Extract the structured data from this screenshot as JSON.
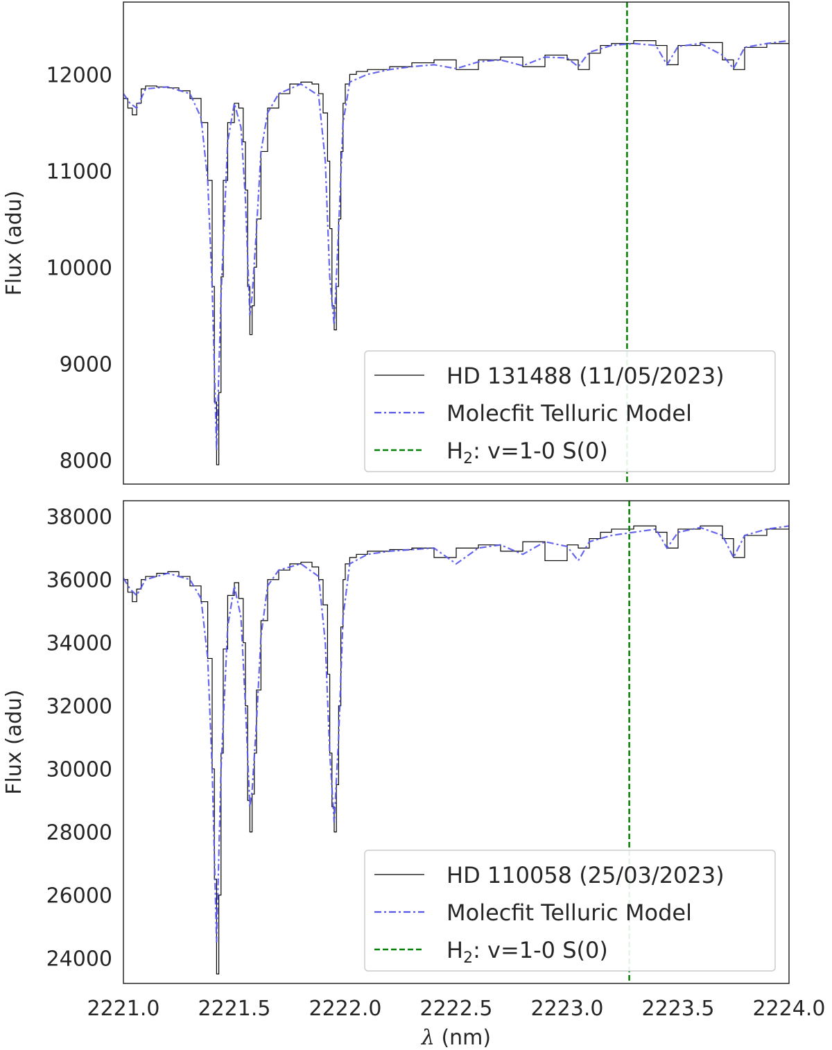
{
  "chart_data": [
    {
      "type": "line",
      "title": "",
      "xlabel": "",
      "ylabel": "Flux (adu)",
      "xlim": [
        2221.0,
        2224.0
      ],
      "ylim": [
        7750,
        12750
      ],
      "yticks": [
        8000,
        9000,
        10000,
        11000,
        12000
      ],
      "xticks": [],
      "grid": false,
      "legend_position": "lower-right",
      "vline": {
        "x": 2223.27,
        "color": "#008000",
        "style": "dashed",
        "label": "H<sub>2</sub>: v=1-0 S(0)"
      },
      "series": [
        {
          "name": "HD 131488 (11/05/2023)",
          "color": "#000000",
          "style": "step",
          "x": [
            2221.0,
            2221.02,
            2221.04,
            2221.06,
            2221.08,
            2221.1,
            2221.15,
            2221.2,
            2221.25,
            2221.3,
            2221.35,
            2221.38,
            2221.4,
            2221.41,
            2221.42,
            2221.43,
            2221.44,
            2221.45,
            2221.47,
            2221.5,
            2221.52,
            2221.54,
            2221.55,
            2221.56,
            2221.57,
            2221.58,
            2221.59,
            2221.6,
            2221.62,
            2221.65,
            2221.7,
            2221.75,
            2221.8,
            2221.85,
            2221.88,
            2221.9,
            2221.92,
            2221.93,
            2221.94,
            2221.95,
            2221.96,
            2221.97,
            2221.98,
            2221.99,
            2222.0,
            2222.02,
            2222.05,
            2222.1,
            2222.2,
            2222.3,
            2222.4,
            2222.5,
            2222.6,
            2222.7,
            2222.8,
            2222.9,
            2223.0,
            2223.05,
            2223.1,
            2223.15,
            2223.2,
            2223.3,
            2223.4,
            2223.45,
            2223.5,
            2223.6,
            2223.7,
            2223.75,
            2223.8,
            2223.9,
            2224.0
          ],
          "values": [
            11750,
            11650,
            11580,
            11700,
            11850,
            11880,
            11870,
            11860,
            11830,
            11750,
            11500,
            10900,
            9800,
            8600,
            7950,
            8700,
            9900,
            10900,
            11500,
            11700,
            11650,
            11300,
            10800,
            9800,
            9300,
            9600,
            10000,
            10500,
            11200,
            11650,
            11800,
            11900,
            11920,
            11900,
            11800,
            11600,
            11100,
            10400,
            9600,
            9350,
            9800,
            10500,
            11200,
            11700,
            11900,
            12000,
            12030,
            12050,
            12080,
            12120,
            12150,
            12050,
            12150,
            12180,
            12080,
            12200,
            12150,
            12050,
            12220,
            12300,
            12320,
            12350,
            12300,
            12100,
            12300,
            12330,
            12150,
            12050,
            12280,
            12320,
            12350
          ]
        },
        {
          "name": "Molecfit Telluric Model",
          "color": "#5555ee",
          "style": "dashdot",
          "x": [
            2221.0,
            2221.03,
            2221.06,
            2221.1,
            2221.2,
            2221.3,
            2221.35,
            2221.38,
            2221.4,
            2221.42,
            2221.44,
            2221.47,
            2221.5,
            2221.53,
            2221.55,
            2221.57,
            2221.58,
            2221.6,
            2221.62,
            2221.65,
            2221.7,
            2221.8,
            2221.88,
            2221.91,
            2221.93,
            2221.95,
            2221.97,
            2221.99,
            2222.02,
            2222.1,
            2222.2,
            2222.3,
            2222.4,
            2222.5,
            2222.6,
            2222.7,
            2222.8,
            2222.9,
            2223.0,
            2223.05,
            2223.1,
            2223.2,
            2223.3,
            2223.4,
            2223.45,
            2223.5,
            2223.6,
            2223.7,
            2223.75,
            2223.8,
            2223.9,
            2224.0
          ],
          "values": [
            11800,
            11700,
            11650,
            11850,
            11870,
            11800,
            11550,
            10900,
            9800,
            8100,
            9700,
            11300,
            11700,
            11450,
            10700,
            9500,
            9700,
            10400,
            11200,
            11600,
            11800,
            11900,
            11780,
            11100,
            9900,
            9400,
            10400,
            11500,
            11920,
            12000,
            12050,
            12080,
            12100,
            12060,
            12130,
            12150,
            12090,
            12180,
            12170,
            12080,
            12230,
            12300,
            12320,
            12300,
            12100,
            12290,
            12320,
            12200,
            12060,
            12280,
            12320,
            12350
          ]
        }
      ]
    },
    {
      "type": "line",
      "title": "",
      "xlabel": "λ (nm)",
      "ylabel": "Flux (adu)",
      "xlim": [
        2221.0,
        2224.0
      ],
      "ylim": [
        23200,
        38500
      ],
      "yticks": [
        24000,
        26000,
        28000,
        30000,
        32000,
        34000,
        36000,
        38000
      ],
      "xticks": [
        "2221.0",
        "2221.5",
        "2222.0",
        "2222.5",
        "2223.0",
        "2223.5",
        "2224.0"
      ],
      "xtick_values": [
        2221.0,
        2221.5,
        2222.0,
        2222.5,
        2223.0,
        2223.5,
        2224.0
      ],
      "grid": false,
      "legend_position": "lower-right",
      "vline": {
        "x": 2223.28,
        "color": "#008000",
        "style": "dashed",
        "label": "H<sub>2</sub>: v=1-0 S(0)"
      },
      "series": [
        {
          "name": "HD 110058 (25/03/2023)",
          "color": "#000000",
          "style": "step",
          "x": [
            2221.0,
            2221.02,
            2221.04,
            2221.06,
            2221.08,
            2221.1,
            2221.15,
            2221.2,
            2221.25,
            2221.3,
            2221.35,
            2221.38,
            2221.4,
            2221.41,
            2221.42,
            2221.43,
            2221.44,
            2221.45,
            2221.47,
            2221.5,
            2221.52,
            2221.54,
            2221.55,
            2221.56,
            2221.57,
            2221.58,
            2221.59,
            2221.6,
            2221.62,
            2221.65,
            2221.7,
            2221.75,
            2221.8,
            2221.85,
            2221.88,
            2221.9,
            2221.92,
            2221.93,
            2221.94,
            2221.95,
            2221.96,
            2221.97,
            2221.98,
            2221.99,
            2222.0,
            2222.02,
            2222.05,
            2222.1,
            2222.2,
            2222.3,
            2222.4,
            2222.5,
            2222.6,
            2222.7,
            2222.8,
            2222.9,
            2223.0,
            2223.05,
            2223.1,
            2223.15,
            2223.2,
            2223.3,
            2223.4,
            2223.45,
            2223.5,
            2223.6,
            2223.7,
            2223.75,
            2223.8,
            2223.9,
            2224.0
          ],
          "values": [
            36000,
            35600,
            35300,
            35700,
            36000,
            36100,
            36200,
            36250,
            36100,
            35800,
            35300,
            33500,
            30000,
            26500,
            23500,
            26000,
            30500,
            33800,
            35500,
            35900,
            35400,
            34000,
            32000,
            29000,
            28000,
            29200,
            30500,
            32500,
            34700,
            36000,
            36300,
            36500,
            36550,
            36400,
            36000,
            35200,
            33000,
            30500,
            28800,
            28000,
            29500,
            32000,
            34500,
            36000,
            36500,
            36700,
            36800,
            36900,
            36950,
            37000,
            36700,
            37000,
            37100,
            36900,
            37200,
            36600,
            37100,
            37000,
            37300,
            37500,
            37600,
            37700,
            37500,
            37000,
            37600,
            37700,
            37300,
            36700,
            37400,
            37600,
            37700
          ]
        },
        {
          "name": "Molecfit Telluric Model",
          "color": "#5555ee",
          "style": "dashdot",
          "x": [
            2221.0,
            2221.03,
            2221.06,
            2221.1,
            2221.2,
            2221.3,
            2221.35,
            2221.38,
            2221.4,
            2221.42,
            2221.44,
            2221.47,
            2221.5,
            2221.53,
            2221.55,
            2221.57,
            2221.58,
            2221.6,
            2221.62,
            2221.65,
            2221.7,
            2221.8,
            2221.88,
            2221.91,
            2221.93,
            2221.95,
            2221.97,
            2221.99,
            2222.02,
            2222.1,
            2222.2,
            2222.3,
            2222.4,
            2222.5,
            2222.6,
            2222.7,
            2222.8,
            2222.9,
            2223.0,
            2223.05,
            2223.1,
            2223.2,
            2223.3,
            2223.4,
            2223.45,
            2223.5,
            2223.6,
            2223.7,
            2223.75,
            2223.8,
            2223.9,
            2224.0
          ],
          "values": [
            36050,
            35700,
            35500,
            36000,
            36200,
            36000,
            35400,
            33500,
            30000,
            24500,
            30000,
            34500,
            35800,
            34800,
            32000,
            28800,
            29300,
            31500,
            34200,
            35800,
            36300,
            36500,
            36100,
            34000,
            30500,
            28300,
            31000,
            34800,
            36500,
            36800,
            36900,
            36950,
            37000,
            36500,
            37000,
            37100,
            36800,
            37200,
            37050,
            36600,
            37200,
            37400,
            37500,
            37600,
            37000,
            37500,
            37650,
            37400,
            36700,
            37400,
            37600,
            37700
          ]
        }
      ]
    }
  ]
}
